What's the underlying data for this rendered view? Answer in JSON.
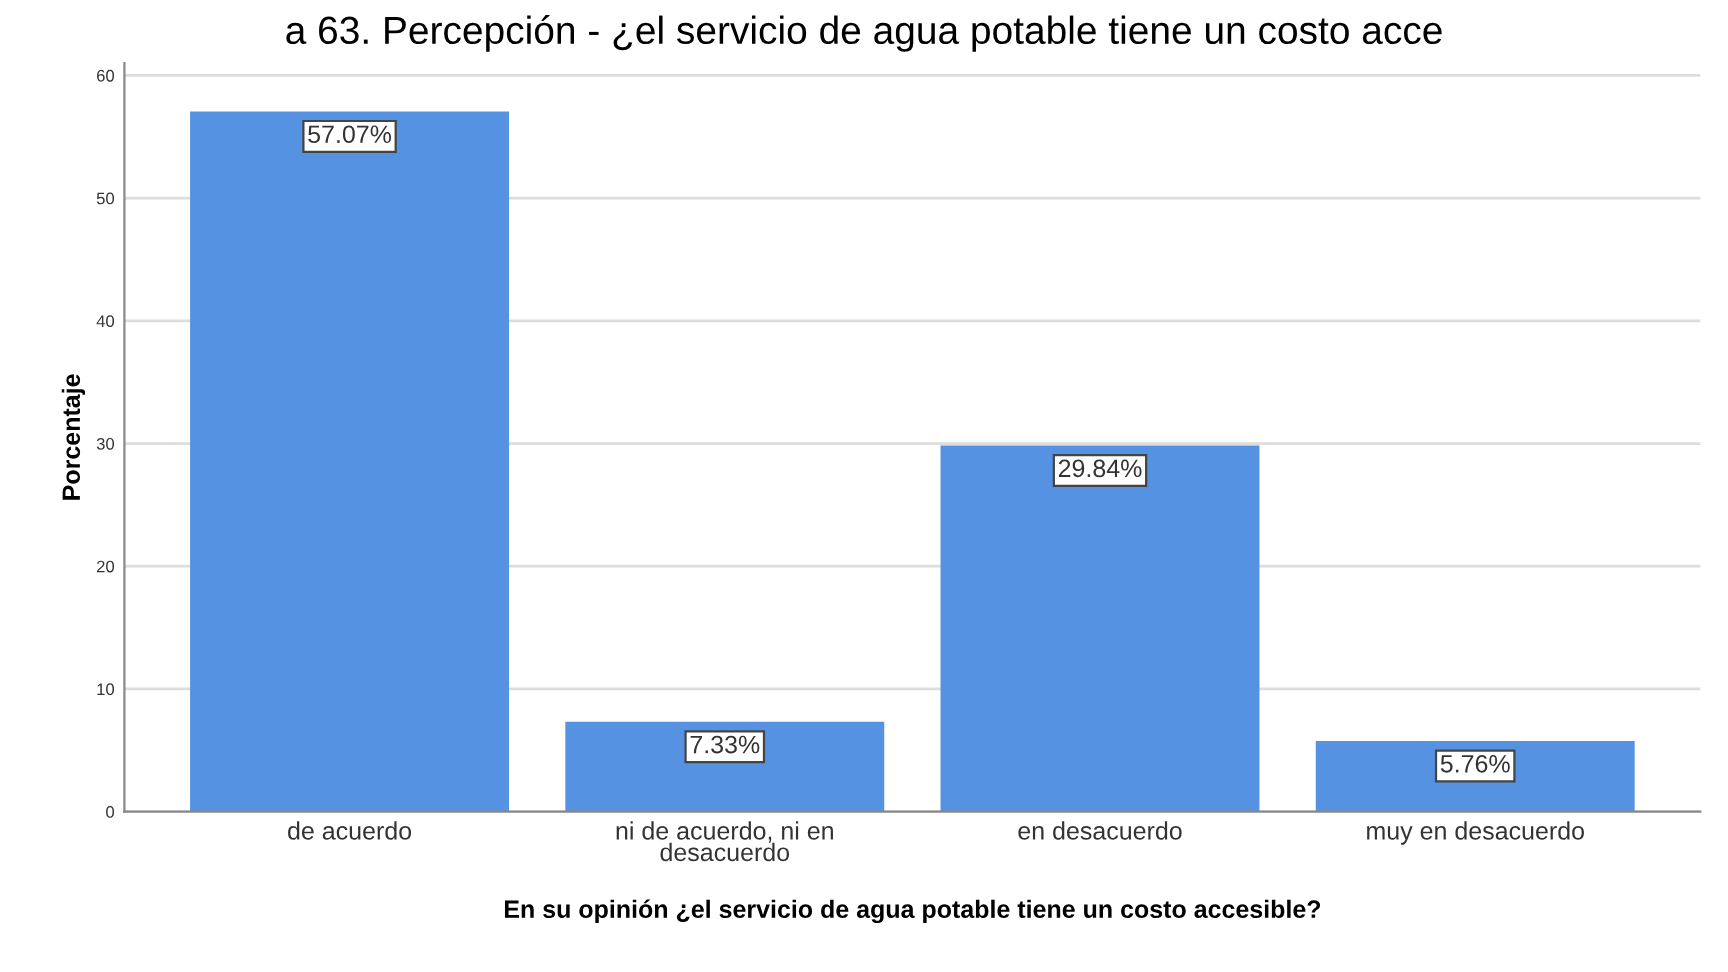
{
  "chart_data": {
    "type": "bar",
    "title": "a 63. Percepción - ¿el servicio de agua potable tiene un costo acce",
    "xlabel": "En su opinión ¿el servicio de agua potable tiene un costo accesible?",
    "ylabel": "Porcentaje",
    "categories": [
      "de acuerdo",
      "ni de acuerdo, ni en\ndesacuerdo",
      "en desacuerdo",
      "muy en desacuerdo"
    ],
    "values": [
      57.07,
      7.33,
      29.84,
      5.76
    ],
    "value_labels": [
      "57.07%",
      "7.33%",
      "29.84%",
      "5.76%"
    ],
    "color": "#5592e2",
    "ylim": [
      0,
      61
    ],
    "yticks": [
      0,
      10,
      20,
      30,
      40,
      50,
      60
    ],
    "grid": "y"
  }
}
